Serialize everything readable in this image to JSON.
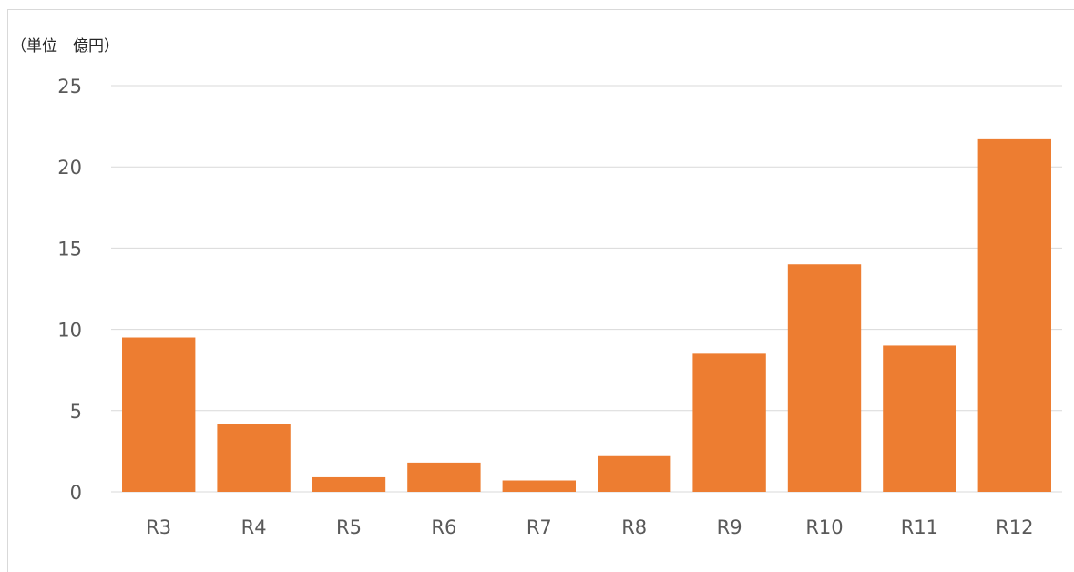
{
  "chart_data": {
    "type": "bar",
    "unit_label": "（単位　億円）",
    "categories": [
      "R3",
      "R4",
      "R5",
      "R6",
      "R7",
      "R8",
      "R9",
      "R10",
      "R11",
      "R12"
    ],
    "values": [
      9.5,
      4.2,
      0.9,
      1.8,
      0.7,
      2.2,
      8.5,
      14.0,
      9.0,
      21.7
    ],
    "yticks": [
      "0",
      "5",
      "10",
      "15",
      "20",
      "25"
    ],
    "ylim": [
      0,
      25
    ],
    "grid": true,
    "bar_color": "#ED7D31",
    "grid_color": "#D9D9D9"
  }
}
